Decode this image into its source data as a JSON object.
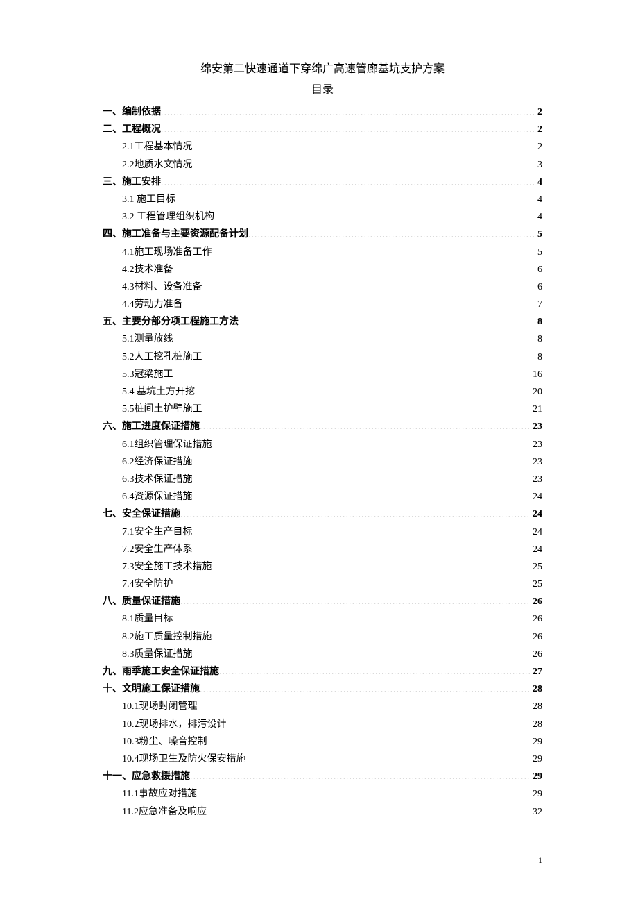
{
  "doc_title": "绵安第二快速通道下穿绵广高速管廊基坑支护方案",
  "toc_title": "目录",
  "page_number": "1",
  "toc": [
    {
      "level": 1,
      "prefix": "一、",
      "label": "编制依据",
      "page": "2"
    },
    {
      "level": 1,
      "prefix": "二、",
      "label": " 工程概况",
      "page": "2"
    },
    {
      "level": 2,
      "prefix": "",
      "label": "2.1工程基本情况",
      "page": "2"
    },
    {
      "level": 2,
      "prefix": "",
      "label": "2.2地质水文情况",
      "page": "3"
    },
    {
      "level": 1,
      "prefix": "三、",
      "label": "施工安排",
      "page": "4"
    },
    {
      "level": 2,
      "prefix": "",
      "label": "3.1 施工目标",
      "page": "4"
    },
    {
      "level": 2,
      "prefix": "",
      "label": "3.2 工程管理组织机构",
      "page": "4"
    },
    {
      "level": 1,
      "prefix": "四、",
      "label": "施工准备与主要资源配备计划",
      "page": "5"
    },
    {
      "level": 2,
      "prefix": "",
      "label": "4.1施工现场准备工作",
      "page": "5"
    },
    {
      "level": 2,
      "prefix": "",
      "label": "4.2技术准备",
      "page": "6"
    },
    {
      "level": 2,
      "prefix": "",
      "label": "4.3材料、设备准备",
      "page": "6"
    },
    {
      "level": 2,
      "prefix": "",
      "label": "4.4劳动力准备",
      "page": "7"
    },
    {
      "level": 1,
      "prefix": "五、",
      "label": "主要分部分项工程施工方法",
      "page": "8"
    },
    {
      "level": 2,
      "prefix": "",
      "label": "5.1测量放线",
      "page": "8"
    },
    {
      "level": 2,
      "prefix": "",
      "label": "5.2人工挖孔桩施工",
      "page": "8"
    },
    {
      "level": 2,
      "prefix": "",
      "label": "5.3冠梁施工",
      "page": "16"
    },
    {
      "level": 2,
      "prefix": "",
      "label": "5.4 基坑土方开挖",
      "page": "20"
    },
    {
      "level": 2,
      "prefix": "",
      "label": "5.5桩间土护壁施工",
      "page": "21"
    },
    {
      "level": 1,
      "prefix": "六、",
      "label": "施工进度保证措施",
      "page": "23"
    },
    {
      "level": 2,
      "prefix": "",
      "label": "6.1组织管理保证措施",
      "page": "23"
    },
    {
      "level": 2,
      "prefix": "",
      "label": "6.2经济保证措施",
      "page": "23"
    },
    {
      "level": 2,
      "prefix": "",
      "label": "6.3技术保证措施",
      "page": "23"
    },
    {
      "level": 2,
      "prefix": "",
      "label": "6.4资源保证措施",
      "page": "24"
    },
    {
      "level": 1,
      "prefix": "七、",
      "label": "安全保证措施",
      "page": "24"
    },
    {
      "level": 2,
      "prefix": "",
      "label": "7.1安全生产目标",
      "page": "24"
    },
    {
      "level": 2,
      "prefix": "",
      "label": "7.2安全生产体系",
      "page": "24"
    },
    {
      "level": 2,
      "prefix": "",
      "label": "7.3安全施工技术措施",
      "page": "25"
    },
    {
      "level": 2,
      "prefix": "",
      "label": "7.4安全防护",
      "page": "25"
    },
    {
      "level": 1,
      "prefix": "八、",
      "label": "质量保证措施",
      "page": "26"
    },
    {
      "level": 2,
      "prefix": "",
      "label": "8.1质量目标",
      "page": "26"
    },
    {
      "level": 2,
      "prefix": "",
      "label": "8.2施工质量控制措施",
      "page": "26"
    },
    {
      "level": 2,
      "prefix": "",
      "label": "8.3质量保证措施",
      "page": "26"
    },
    {
      "level": 1,
      "prefix": "九、",
      "label": "雨季施工安全保证措施",
      "page": "27"
    },
    {
      "level": 1,
      "prefix": "十、",
      "label": " 文明施工保证措施",
      "page": "28"
    },
    {
      "level": 2,
      "prefix": "",
      "label": "10.1现场封闭管理",
      "page": "28"
    },
    {
      "level": 2,
      "prefix": "",
      "label": "10.2现场排水，排污设计",
      "page": "28"
    },
    {
      "level": 2,
      "prefix": "",
      "label": "10.3粉尘、噪音控制",
      "page": "29"
    },
    {
      "level": 2,
      "prefix": "",
      "label": "10.4现场卫生及防火保安措施",
      "page": "29"
    },
    {
      "level": 1,
      "prefix": "十一、",
      "label": "应急救援措施",
      "page": "29"
    },
    {
      "level": 2,
      "prefix": "",
      "label": "11.1事故应对措施",
      "page": "29"
    },
    {
      "level": 2,
      "prefix": "",
      "label": "11.2应急准备及响应",
      "page": "32"
    }
  ]
}
